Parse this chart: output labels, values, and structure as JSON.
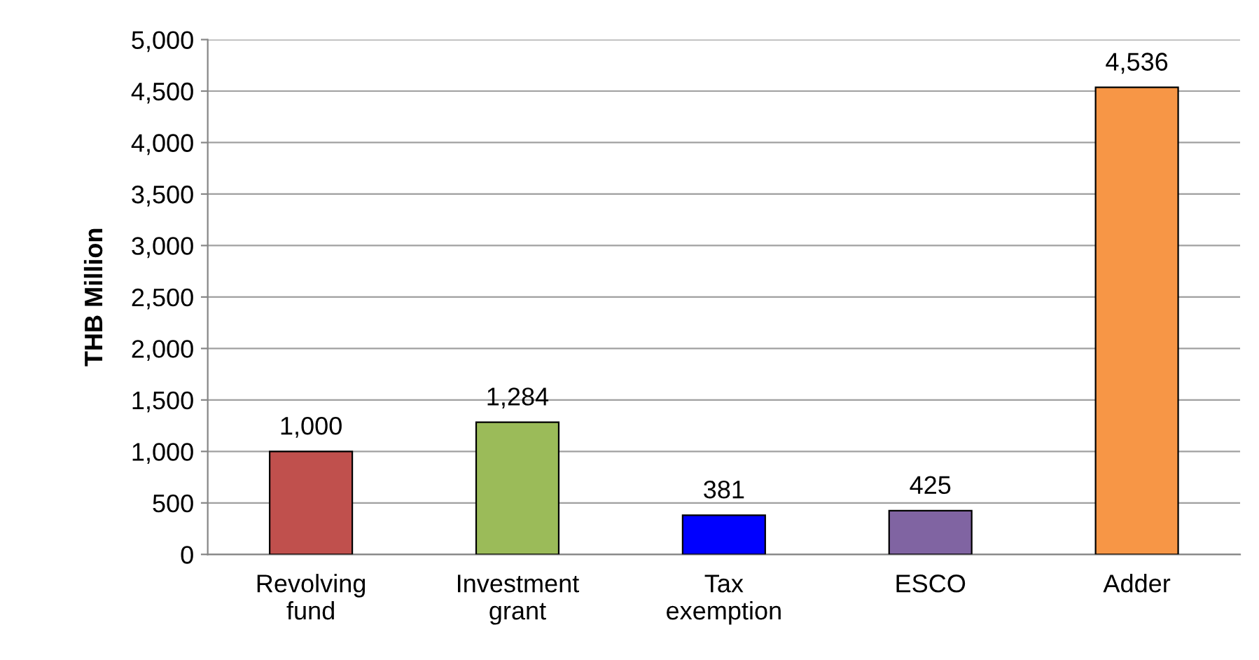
{
  "chart_data": {
    "type": "bar",
    "ylabel": "THB Million",
    "categories": [
      "Revolving\nfund",
      "Investment\ngrant",
      "Tax\nexemption",
      "ESCO",
      "Adder"
    ],
    "values": [
      1000,
      1284,
      381,
      425,
      4536
    ],
    "value_labels": [
      "1,000",
      "1,284",
      "381",
      "425",
      "4,536"
    ],
    "colors": [
      "#c0504d",
      "#9bbb59",
      "#0000ff",
      "#8064a2",
      "#f79646"
    ],
    "ylim": [
      0,
      5000
    ],
    "yticks": [
      0,
      {
        "value": 500,
        "label": "500"
      },
      {
        "value": 1000,
        "label": "1,000"
      },
      {
        "value": 1500,
        "label": "1,500"
      },
      {
        "value": 2000,
        "label": "2,000"
      },
      {
        "value": 2500,
        "label": "2,500"
      },
      {
        "value": 3000,
        "label": "3,000"
      },
      {
        "value": 3500,
        "label": "3,500"
      },
      {
        "value": 4000,
        "label": "4,000"
      },
      {
        "value": 4500,
        "label": "4,500"
      },
      {
        "value": 5000,
        "label": "5,000"
      }
    ],
    "grid": "y",
    "legend": false
  }
}
